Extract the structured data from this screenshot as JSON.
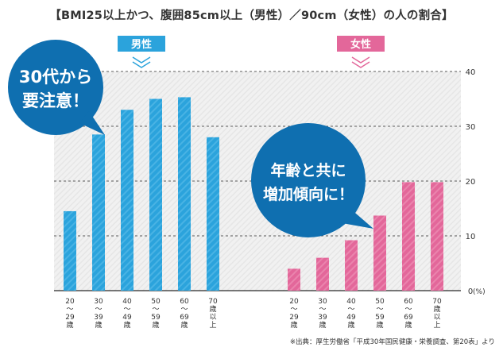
{
  "title": "【BMI25以上かつ、腹囲85cm以上（男性）／90cm（女性）の人の割合】",
  "source": "※出典：厚生労働省「平成30年国民健康・栄養調査、第20表」より",
  "colors": {
    "male": "#2ba3dc",
    "female": "#e3679a",
    "callout": "#0f6fb0",
    "grid": "#2a2a2a",
    "chart_bg": "#eeeeee"
  },
  "callouts": {
    "male_text": [
      "30代から",
      "要注意！"
    ],
    "female_text": [
      "年齢と共に",
      "増加傾向に！"
    ]
  },
  "chart_data": {
    "type": "bar",
    "unit_label": "(%)",
    "ylim": [
      0,
      40
    ],
    "yticks": [
      0,
      10,
      20,
      30,
      40
    ],
    "grid": true,
    "categories": [
      [
        "20",
        "〜",
        "29",
        "歳"
      ],
      [
        "30",
        "〜",
        "39",
        "歳"
      ],
      [
        "40",
        "〜",
        "49",
        "歳"
      ],
      [
        "50",
        "〜",
        "59",
        "歳"
      ],
      [
        "60",
        "〜",
        "69",
        "歳"
      ],
      [
        "70",
        "歳",
        "以",
        "上"
      ]
    ],
    "series": [
      {
        "name": "男性",
        "values": [
          14.5,
          28.5,
          33.0,
          35.0,
          35.3,
          28.0
        ]
      },
      {
        "name": "女性",
        "values": [
          4.0,
          6.0,
          9.2,
          13.7,
          19.8,
          19.8
        ]
      }
    ]
  }
}
